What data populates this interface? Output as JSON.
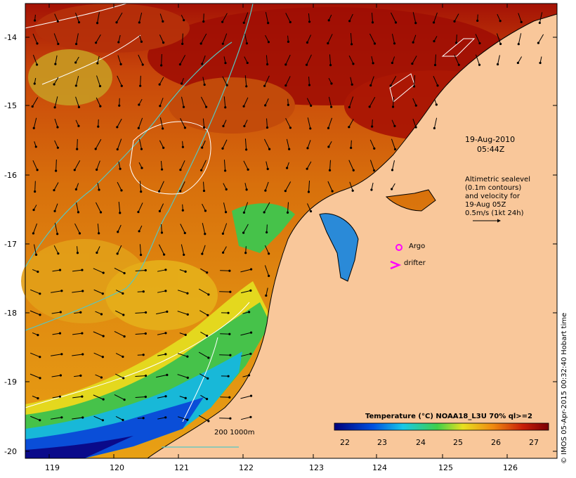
{
  "map": {
    "lat_ticks": [
      "-14",
      "-15",
      "-16",
      "-17",
      "-18",
      "-19",
      "-20"
    ],
    "lon_ticks": [
      "119",
      "120",
      "121",
      "122",
      "123",
      "124",
      "125",
      "126"
    ],
    "date": "19-Aug-2010",
    "time": "05:44Z",
    "altimetry_note": [
      "Altimetric sealevel",
      "(0.1m contours)",
      "and velocity for",
      "19-Aug 05Z",
      "0.5m/s (1kt 24h)"
    ],
    "argo_label": "Argo",
    "drifter_label": "drifter",
    "depth_legend": "200  1000m",
    "colorbar_title": "Temperature (°C) NOAA18_L3U 70% ql>=2",
    "colorbar_ticks": [
      "22",
      "23",
      "24",
      "25",
      "26",
      "27"
    ],
    "credit": "© IMOS 05-Apr-2015 00:32:40 Hobart time",
    "colors": {
      "land": "#f9c79a",
      "warm_dark": "#9b0d05",
      "warm": "#d45a08",
      "mid": "#e89a12",
      "green": "#49c94a",
      "cold": "#0a0a8a",
      "contour_cyan": "#56c7c2",
      "marker_magenta": "#ff00ff"
    }
  }
}
